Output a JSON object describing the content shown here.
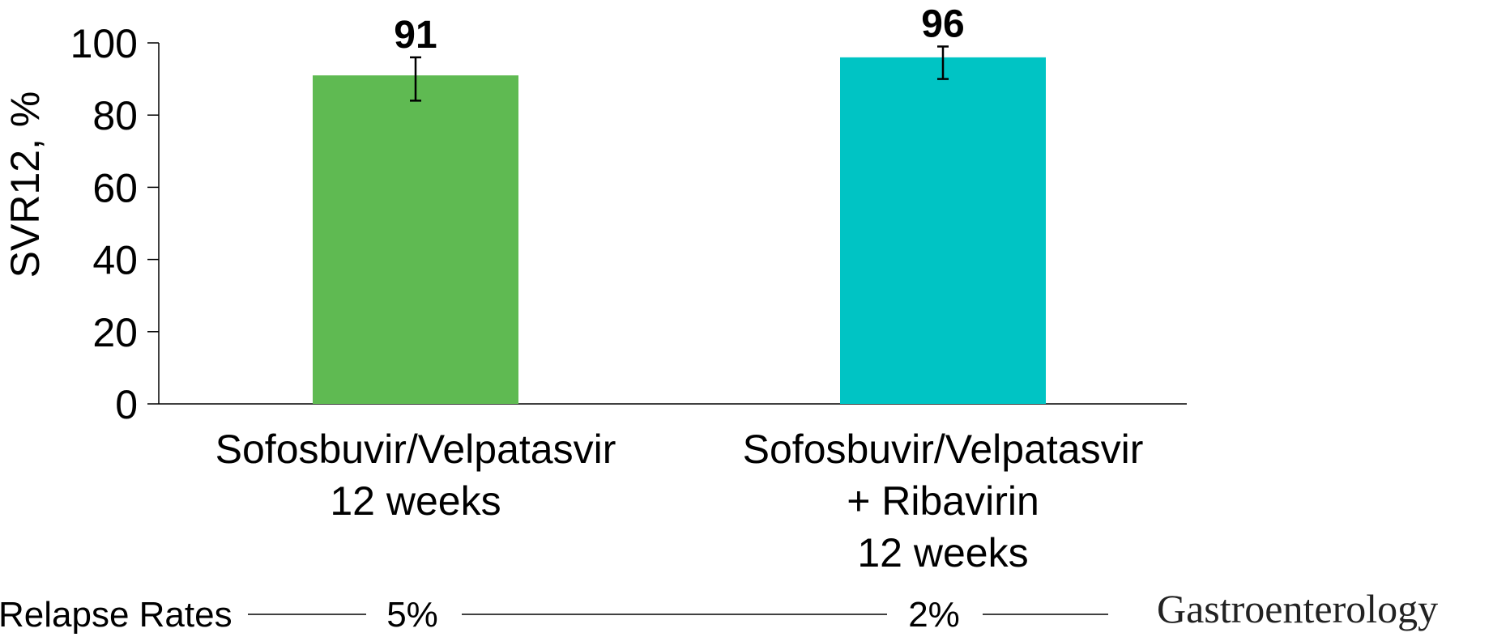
{
  "chart_data": {
    "type": "bar",
    "title": "",
    "xlabel": "",
    "ylabel": "SVR12, %",
    "ylim": [
      0,
      100
    ],
    "yticks": [
      0,
      20,
      40,
      60,
      80,
      100
    ],
    "categories": [
      [
        "Sofosbuvir/Velpatasvir",
        "12 weeks"
      ],
      [
        "Sofosbuvir/Velpatasvir",
        "+ Ribavirin",
        "12 weeks"
      ]
    ],
    "values": [
      91,
      96
    ],
    "data_labels": [
      "91",
      "96"
    ],
    "error_bars": [
      [
        84,
        96
      ],
      [
        90,
        99
      ]
    ],
    "colors": [
      "#5fba52",
      "#00c4c4"
    ],
    "grid": false,
    "relapse_rates": {
      "label": "Relapse Rates",
      "values": [
        "5%",
        "2%"
      ]
    }
  },
  "brand": "Gastroenterology"
}
